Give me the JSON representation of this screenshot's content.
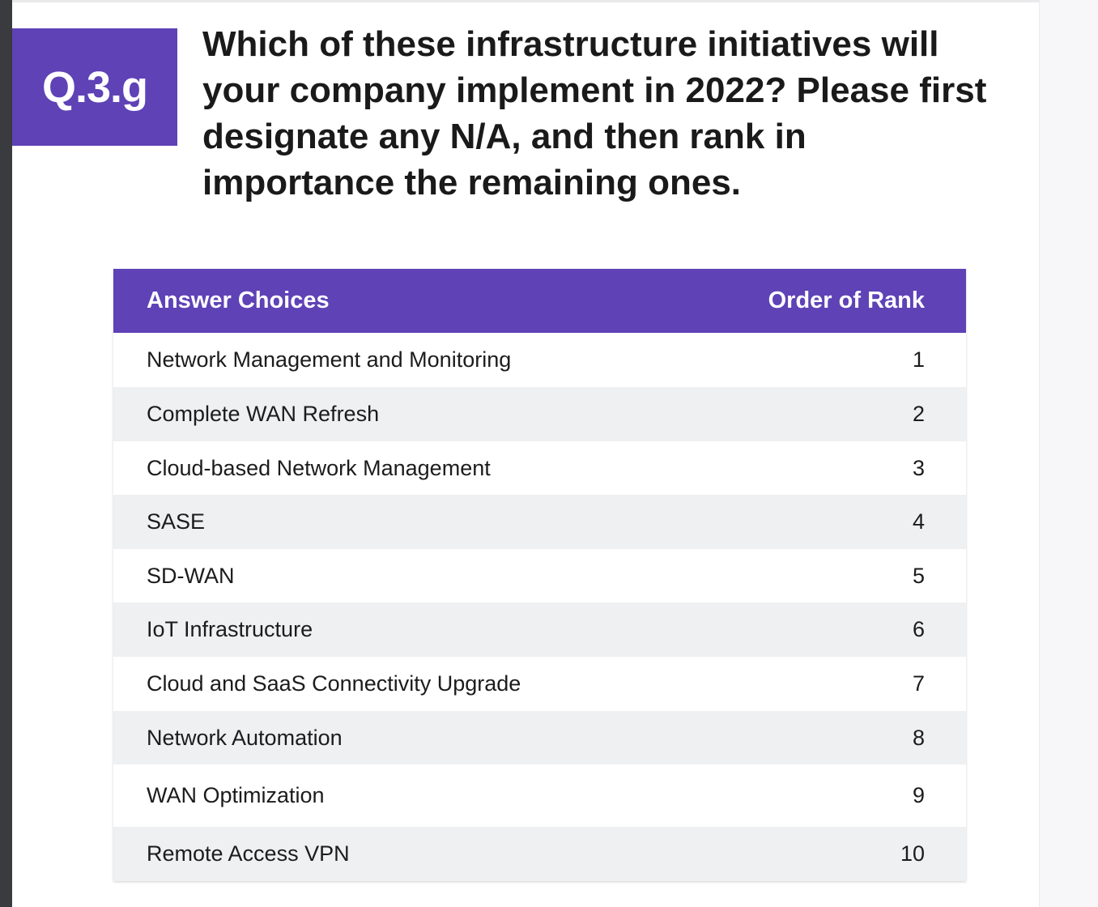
{
  "badge": "Q.3.g",
  "question": "Which of these infrastructure initiatives will your company implement in 2022? Please first designate any N/A, and then rank in importance the remaining ones.",
  "table": {
    "headers": {
      "choice": "Answer Choices",
      "rank": "Order of Rank"
    },
    "rows": [
      {
        "choice": "Network Management and Monitoring",
        "rank": "1"
      },
      {
        "choice": "Complete WAN Refresh",
        "rank": "2"
      },
      {
        "choice": "Cloud-based Network Management",
        "rank": "3"
      },
      {
        "choice": "SASE",
        "rank": "4"
      },
      {
        "choice": "SD-WAN",
        "rank": "5"
      },
      {
        "choice": "IoT Infrastructure",
        "rank": "6"
      },
      {
        "choice": "Cloud and SaaS Connectivity Upgrade",
        "rank": "7"
      },
      {
        "choice": "Network Automation",
        "rank": "8"
      },
      {
        "choice": "WAN Optimization",
        "rank": "9"
      },
      {
        "choice": "Remote Access VPN",
        "rank": "10"
      }
    ]
  },
  "colors": {
    "accent": "#5e42b6",
    "stripe": "#eef0f1"
  }
}
